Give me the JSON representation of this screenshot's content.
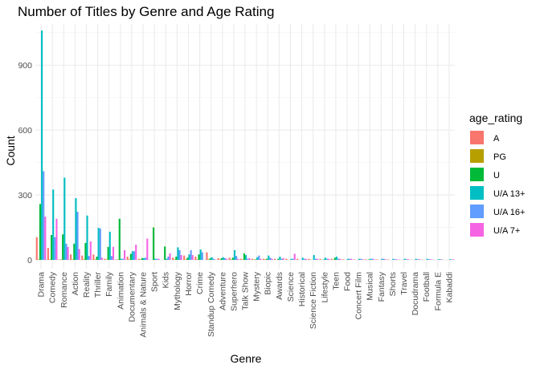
{
  "chart_data": {
    "type": "bar",
    "title": "Number of Titles by Genre and Age Rating",
    "xlabel": "Genre",
    "ylabel": "Count",
    "ylim": [
      0,
      1090
    ],
    "yticks": [
      0,
      300,
      600,
      900
    ],
    "grid": true,
    "legend_position": "right",
    "legend_title": "age_rating",
    "categories": [
      "Drama",
      "Comedy",
      "Romance",
      "Action",
      "Reality",
      "Thriller",
      "Family",
      "Animation",
      "Documentary",
      "Animals & Nature",
      "Sport",
      "Kids",
      "Mythology",
      "Horror",
      "Crime",
      "Standup Comedy",
      "Adventure",
      "Superhero",
      "Talk Show",
      "Mystery",
      "Biopic",
      "Awards",
      "Science",
      "Historical",
      "Science Fiction",
      "Lifestyle",
      "Teen",
      "Food",
      "Concert Film",
      "Musical",
      "Fantasy",
      "Shorts",
      "Travel",
      "Docudrama",
      "Football",
      "Formula E",
      "Kabaddi"
    ],
    "series": [
      {
        "name": "A",
        "color": "#F8766D",
        "values": [
          105,
          55,
          2,
          25,
          20,
          25,
          5,
          2,
          15,
          5,
          0,
          0,
          10,
          20,
          15,
          35,
          8,
          10,
          5,
          5,
          5,
          5,
          5,
          5,
          5,
          5,
          5,
          3,
          2,
          3,
          2,
          2,
          1,
          1,
          1,
          1,
          0
        ]
      },
      {
        "name": "PG",
        "color": "#B79F00",
        "values": [
          2,
          2,
          2,
          2,
          2,
          2,
          2,
          2,
          2,
          2,
          0,
          0,
          2,
          2,
          2,
          2,
          2,
          2,
          2,
          2,
          2,
          0,
          1,
          0,
          1,
          0,
          1,
          0,
          0,
          0,
          0,
          0,
          0,
          0,
          0,
          0,
          0
        ]
      },
      {
        "name": "U",
        "color": "#00BA38",
        "values": [
          258,
          115,
          118,
          75,
          78,
          15,
          60,
          190,
          28,
          8,
          150,
          62,
          15,
          10,
          25,
          8,
          8,
          10,
          30,
          2,
          5,
          5,
          0,
          0,
          0,
          2,
          10,
          0,
          0,
          2,
          0,
          0,
          0,
          0,
          0,
          0,
          0
        ]
      },
      {
        "name": "U/A 13+",
        "color": "#00BFC4",
        "values": [
          1060,
          325,
          380,
          285,
          205,
          148,
          130,
          5,
          40,
          8,
          5,
          5,
          58,
          25,
          48,
          12,
          12,
          45,
          22,
          12,
          20,
          15,
          5,
          10,
          22,
          10,
          15,
          5,
          5,
          5,
          5,
          5,
          5,
          5,
          5,
          3,
          3
        ]
      },
      {
        "name": "U/A 16+",
        "color": "#619CFF",
        "values": [
          410,
          105,
          75,
          222,
          18,
          145,
          18,
          5,
          40,
          10,
          5,
          15,
          45,
          45,
          35,
          5,
          8,
          18,
          5,
          20,
          10,
          5,
          5,
          5,
          5,
          5,
          5,
          5,
          5,
          5,
          5,
          3,
          3,
          3,
          3,
          3,
          2
        ]
      },
      {
        "name": "U/A 7+",
        "color": "#F564E3",
        "values": [
          200,
          190,
          60,
          50,
          85,
          10,
          60,
          45,
          70,
          98,
          5,
          30,
          22,
          22,
          0,
          2,
          5,
          5,
          8,
          5,
          5,
          8,
          28,
          5,
          5,
          5,
          5,
          5,
          3,
          3,
          3,
          3,
          3,
          3,
          3,
          2,
          2
        ]
      }
    ]
  }
}
